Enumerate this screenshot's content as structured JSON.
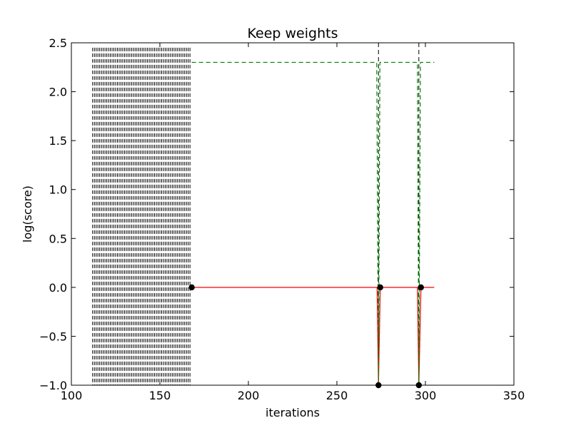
{
  "chart_data": {
    "type": "line",
    "title": "Keep weights",
    "xlabel": "iterations",
    "ylabel": "log(score)",
    "xlim": [
      100,
      350
    ],
    "ylim": [
      -1.0,
      2.5
    ],
    "xticks": [
      "100",
      "150",
      "200",
      "250",
      "300",
      "350"
    ],
    "yticks": [
      "−1.0",
      "−0.5",
      "0.0",
      "0.5",
      "1.0",
      "1.5",
      "2.0",
      "2.5"
    ],
    "grid": false,
    "legend": "none",
    "dense_vertical_dashed_lines": {
      "x_start": 112,
      "x_end": 167,
      "color": "#000000",
      "style": "dashed",
      "y_range": [
        -1.0,
        2.45
      ]
    },
    "vertical_dashed_lines": [
      {
        "x": 273.5,
        "color": "#000000"
      },
      {
        "x": 296.3,
        "color": "#000000"
      }
    ],
    "series": [
      {
        "color": "#ff0000",
        "style": "solid",
        "x": [
          168,
          272.7,
          273.5,
          274.5,
          295.5,
          296.3,
          297.5,
          305
        ],
        "y": [
          0.0,
          0.0,
          -1.0,
          0.0,
          0.0,
          -1.0,
          0.0,
          0.0
        ]
      },
      {
        "color": "#008000",
        "style": "dashed",
        "x": [
          168,
          272.5,
          273.5,
          274.3,
          295.5,
          296.3,
          297.2,
          305
        ],
        "y": [
          2.3,
          2.3,
          -1.0,
          2.3,
          2.3,
          -1.0,
          2.3,
          2.3
        ]
      }
    ],
    "markers": [
      {
        "x": 168,
        "y": 0.0
      },
      {
        "x": 274.5,
        "y": 0.0
      },
      {
        "x": 297.5,
        "y": 0.0
      },
      {
        "x": 273.5,
        "y": -1.0
      },
      {
        "x": 296.3,
        "y": -1.0
      }
    ]
  }
}
